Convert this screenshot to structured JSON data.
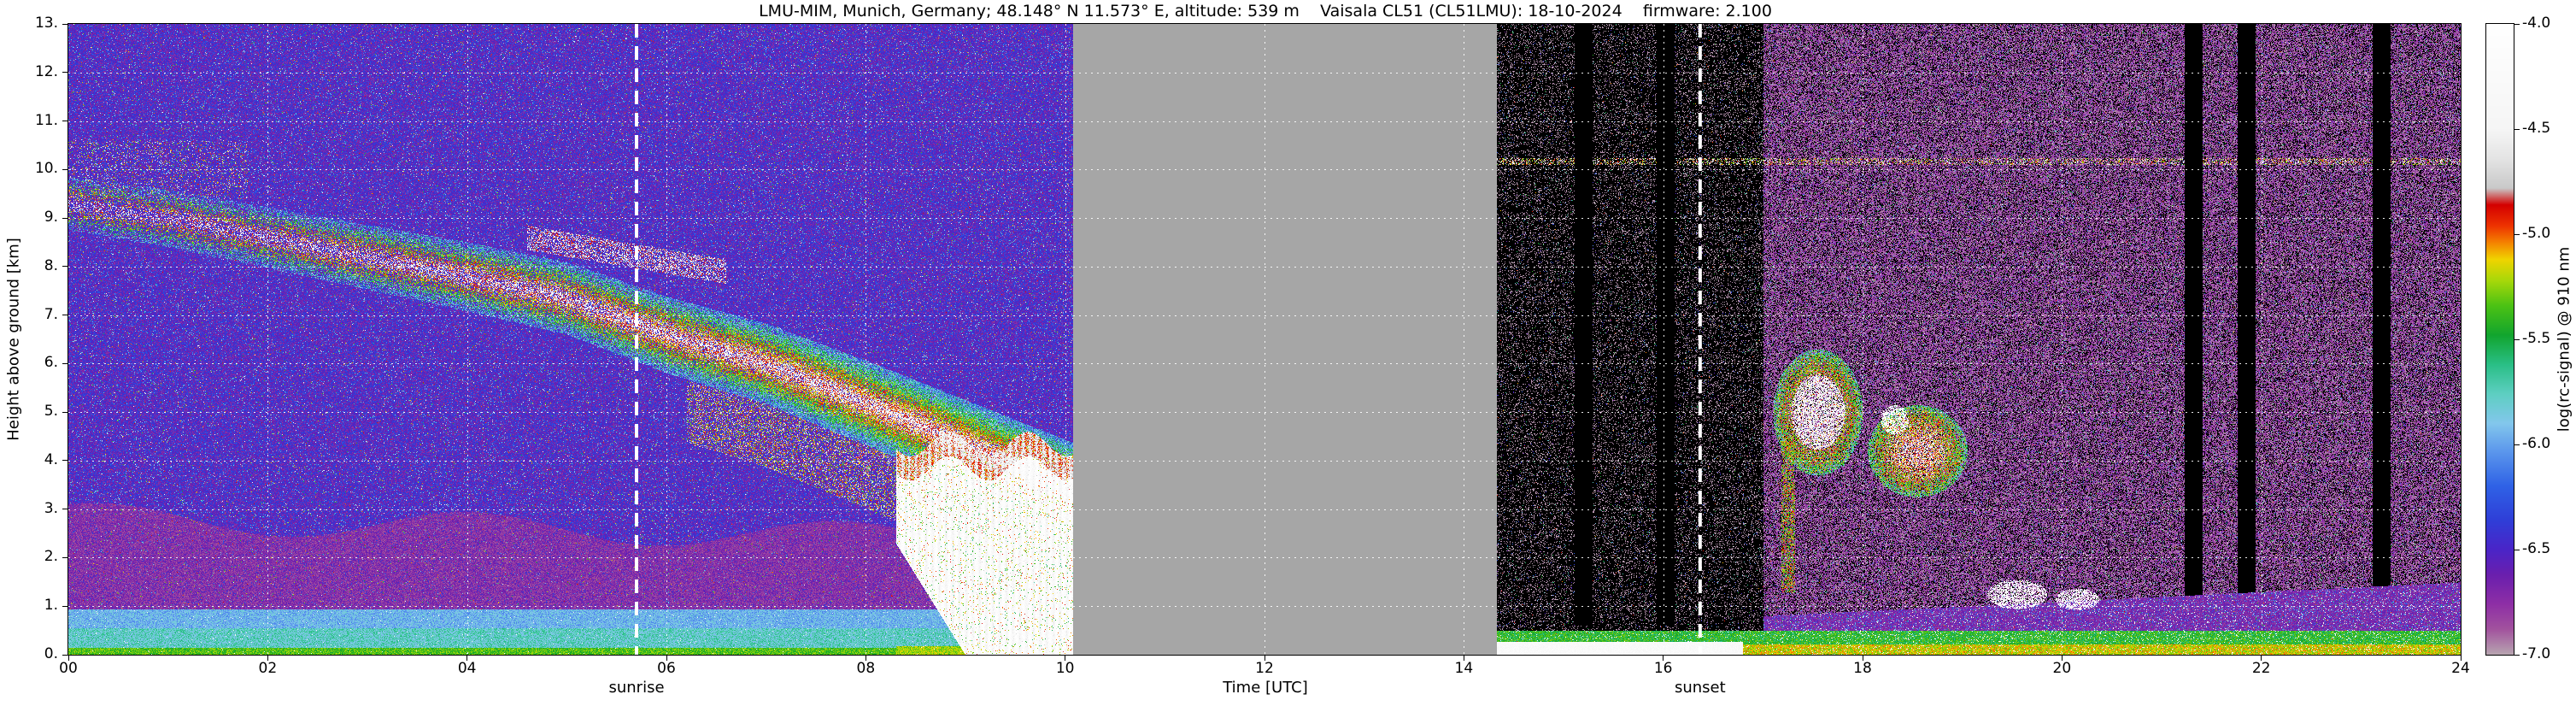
{
  "title": "LMU-MIM, Munich, Germany; 48.148° N 11.573° E, altitude: 539 m    Vaisala CL51 (CL51LMU): 18-10-2024    firmware: 2.100",
  "chart_data": {
    "type": "heatmap",
    "title": "LMU-MIM, Munich, Germany; 48.148° N 11.573° E, altitude: 539 m    Vaisala CL51 (CL51LMU): 18-10-2024    firmware: 2.100",
    "xlabel": "Time [UTC]",
    "ylabel": "Height above ground [km]",
    "xlim": [
      0,
      24
    ],
    "ylim": [
      0,
      13
    ],
    "x_tick_hours": [
      0,
      2,
      4,
      6,
      8,
      10,
      12,
      14,
      16,
      18,
      20,
      22,
      24
    ],
    "x_tick_labels": [
      "00",
      "02",
      "04",
      "06",
      "08",
      "10",
      "12",
      "14",
      "16",
      "18",
      "20",
      "22",
      "24"
    ],
    "y_tick_km": [
      0,
      1,
      2,
      3,
      4,
      5,
      6,
      7,
      8,
      9,
      10,
      11,
      12,
      13
    ],
    "y_tick_labels": [
      "0.",
      "1.",
      "2.",
      "3.",
      "4.",
      "5.",
      "6.",
      "7.",
      "8.",
      "9.",
      "10.",
      "11.",
      "12.",
      "13."
    ],
    "grid": {
      "color": "#ffffff",
      "style": "dashed",
      "x_step_hours": 2,
      "y_step_km": 1
    },
    "colorbar": {
      "label": "log(rc-signal) @ 910 nm",
      "tick_labels": [
        "-4.0",
        "-4.5",
        "-5.0",
        "-5.5",
        "-6.0",
        "-6.5",
        "-7.0"
      ],
      "vmin": -7.0,
      "vmax": -4.0,
      "under_color": "#000000",
      "stops": [
        [
          -7.0,
          "#b7a4b0"
        ],
        [
          -6.88,
          "#a2529e"
        ],
        [
          -6.76,
          "#8e2fa6"
        ],
        [
          -6.62,
          "#6a1fae"
        ],
        [
          -6.5,
          "#4a25c8"
        ],
        [
          -6.36,
          "#2f3fd8"
        ],
        [
          -6.2,
          "#2f62e6"
        ],
        [
          -6.04,
          "#5a95ec"
        ],
        [
          -5.9,
          "#83c7ec"
        ],
        [
          -5.76,
          "#5ecfc2"
        ],
        [
          -5.62,
          "#2abf86"
        ],
        [
          -5.48,
          "#12a52e"
        ],
        [
          -5.34,
          "#4cc214"
        ],
        [
          -5.22,
          "#a8d80a"
        ],
        [
          -5.12,
          "#f0d400"
        ],
        [
          -5.04,
          "#f58300"
        ],
        [
          -4.96,
          "#ee3300"
        ],
        [
          -4.86,
          "#d40000"
        ],
        [
          -4.78,
          "#c9c9c9"
        ],
        [
          -4.64,
          "#e4e4e4"
        ],
        [
          -4.5,
          "#f6f6f6"
        ],
        [
          -4.0,
          "#ffffff"
        ]
      ]
    },
    "annotations": [
      {
        "label": "sunrise",
        "time_utc": 5.7,
        "style": "white dashed vertical line"
      },
      {
        "label": "sunset",
        "time_utc": 16.37,
        "style": "white dashed vertical line"
      }
    ],
    "missing_data": {
      "from_utc": 10.08,
      "to_utc": 14.33,
      "color": "#a6a6a6"
    },
    "features": {
      "descending_aerosol_layer": {
        "desc": "Lofted aerosol/cloud layer descending from ~9.3 km at 00 UTC to ~3.4 km at 10 UTC (orange/red/white)",
        "center_km_points": [
          [
            0,
            9.3
          ],
          [
            1,
            9.0
          ],
          [
            2,
            8.6
          ],
          [
            3,
            8.2
          ],
          [
            4,
            7.8
          ],
          [
            5,
            7.35
          ],
          [
            6,
            6.6
          ],
          [
            7,
            6.0
          ],
          [
            8,
            5.2
          ],
          [
            8.7,
            4.6
          ],
          [
            9.4,
            4.0
          ],
          [
            10.1,
            3.4
          ]
        ],
        "halfwidth_km_base": 0.55,
        "halfwidth_km_per_hour": 0.04,
        "coverage_base": 0.28,
        "coverage_per_hour": 0.07
      },
      "upper_streak": {
        "desc": "thin red streak above main layer",
        "from_utc": 4.6,
        "to_utc": 6.6,
        "center_start_km": 8.6,
        "slope_km_per_hour": -0.35,
        "halfwidth_km": 0.25
      },
      "early_high_blobs": {
        "desc": "scattered orange blobs near 10 km before 02 UTC",
        "until_utc": 1.8,
        "h_from_km": 9.4,
        "h_to_km": 10.6
      },
      "boundary_layer": {
        "desc": "purple residual/boundary layer below ~2.9 km until ~08 UTC",
        "top_km_base": 2.85,
        "until_utc": 8.3
      },
      "surface_layer_day": {
        "desc": "cyan-blue surface layer with green lowest bins",
        "top_km": 0.95,
        "until_utc": 9.0
      },
      "low_cloud_precip": {
        "desc": "thick white low cloud / precipitation 08:20-10:05 UTC below ~4.4 km",
        "from_utc": 8.3,
        "to_utc": 10.08,
        "top_km": 4.35
      },
      "virga": {
        "desc": "red virga streaks below descending layer",
        "from_utc": 6.2,
        "to_utc": 8.35,
        "depth_km": 1.3
      },
      "night_clouds": [
        {
          "t_utc": 17.55,
          "h_km": 5.0,
          "rt_h": 0.45,
          "rh_km": 1.3,
          "core": true
        },
        {
          "t_utc": 18.55,
          "h_km": 4.2,
          "rt_h": 0.5,
          "rh_km": 0.95
        },
        {
          "t_utc": 18.32,
          "h_km": 4.85,
          "rt_h": 0.14,
          "rh_km": 0.3,
          "white": true
        },
        {
          "t_utc": 19.55,
          "h_km": 1.25,
          "rt_h": 0.3,
          "rh_km": 0.3,
          "white": true
        },
        {
          "t_utc": 20.15,
          "h_km": 1.15,
          "rt_h": 0.22,
          "rh_km": 0.22,
          "white": true
        }
      ],
      "green_streak": {
        "t_utc": 17.25,
        "h_from_km": 1.3,
        "h_to_km": 4.4
      },
      "artifact_dotted_line": {
        "desc": "dotted orange artifact line",
        "h_km": 10.18,
        "from_utc": 14.33,
        "to_utc": 24
      },
      "dark_columns_utc": [
        15.2,
        16.02,
        21.32,
        21.85,
        23.2
      ],
      "surface_layer_night": {
        "green_top_km": 0.5,
        "bright_line_until_utc": 16.8,
        "purple_from_utc": 17.0,
        "purple_top_start_km": 0.8,
        "purple_top_end_km": 1.5
      }
    }
  }
}
